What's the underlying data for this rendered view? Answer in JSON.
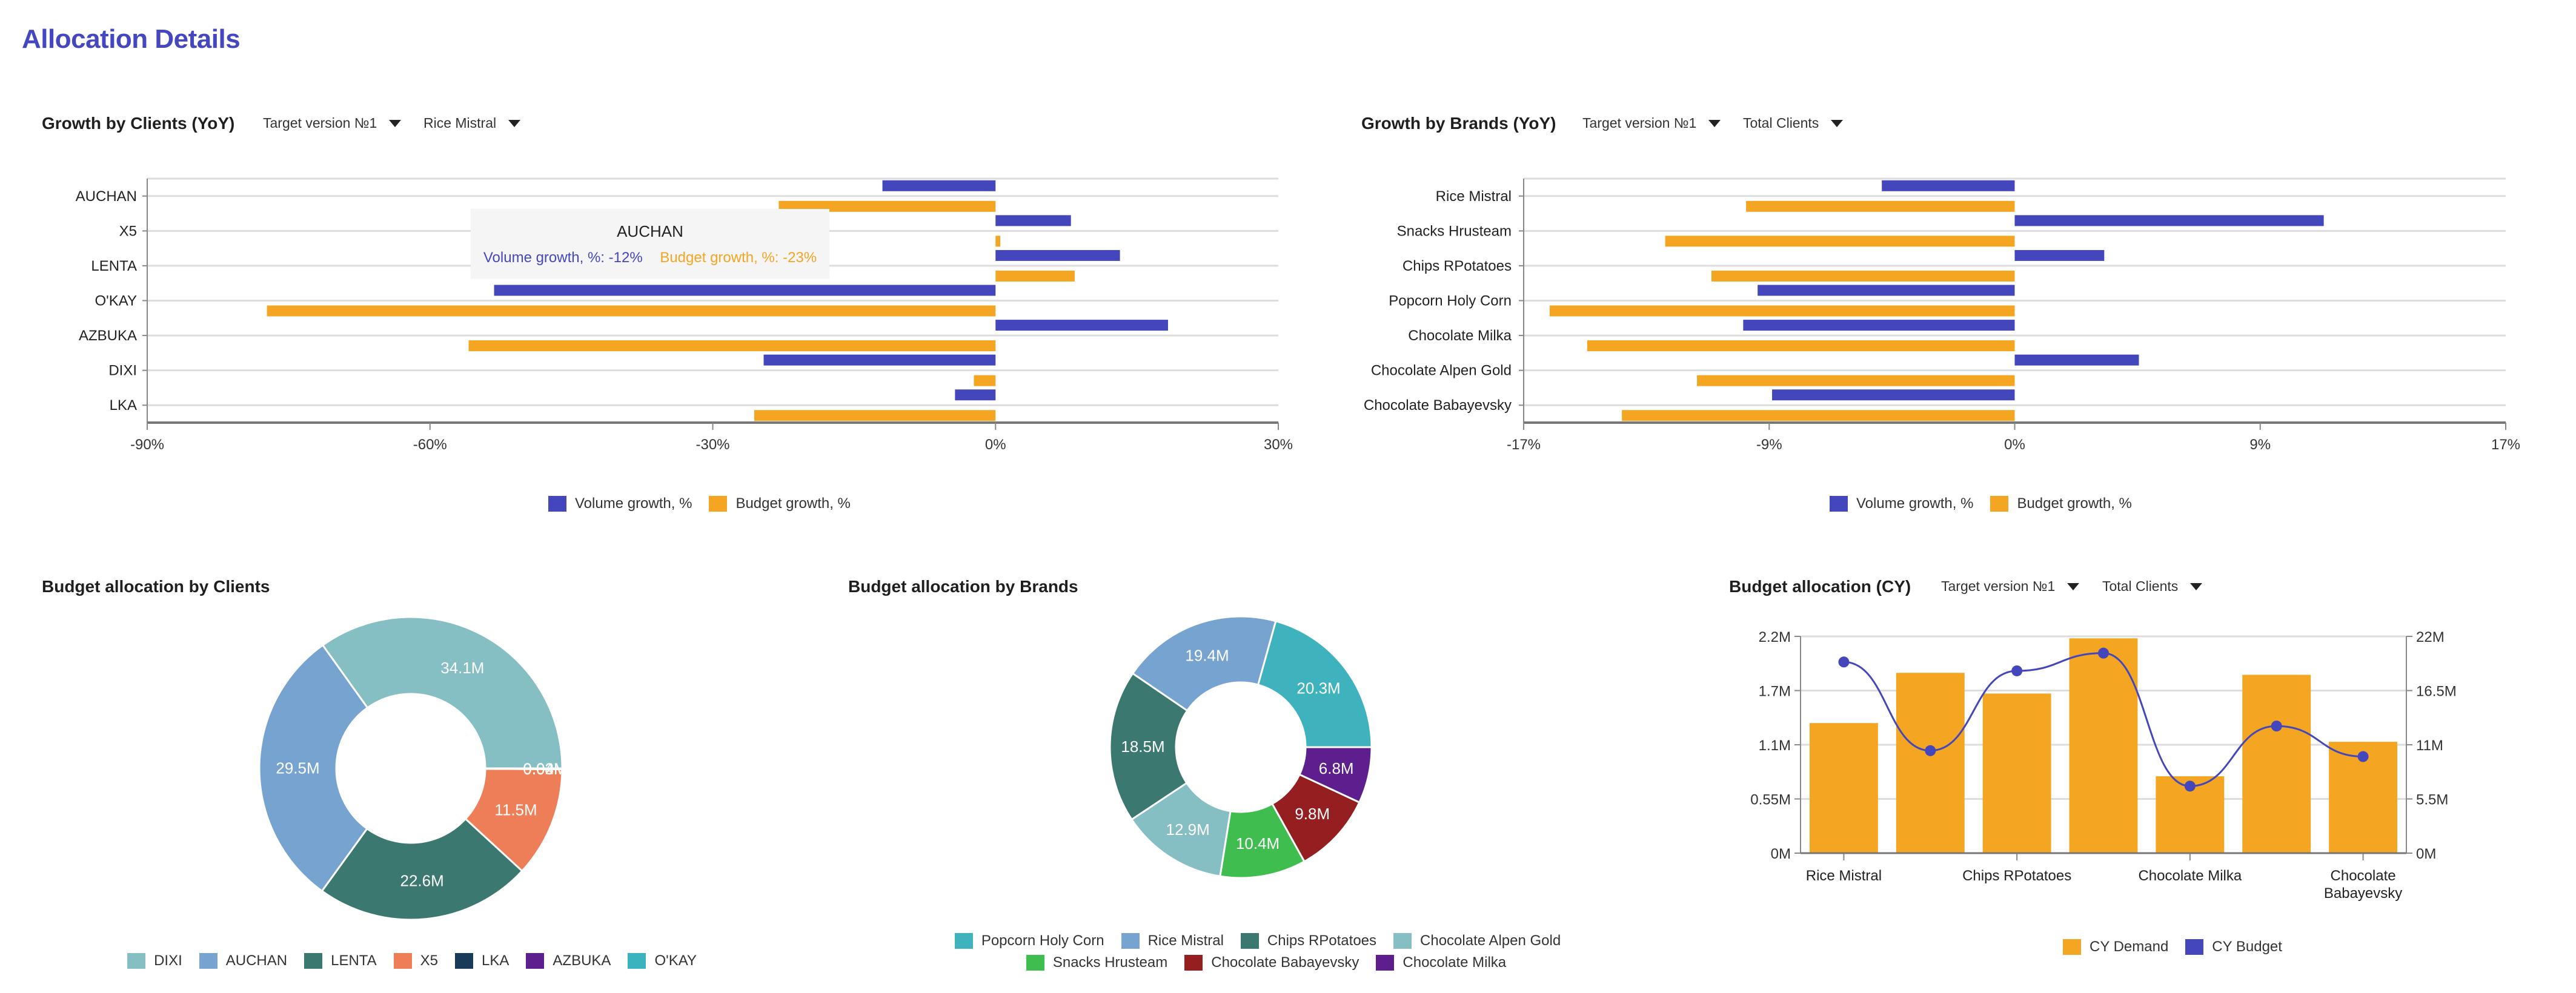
{
  "page": {
    "title": "Allocation Details"
  },
  "colors": {
    "title": "#4447C0",
    "volume": "#4447BB",
    "budget": "#F4A522",
    "grid": "#dddddd",
    "axis": "#888888"
  },
  "growth_clients": {
    "title": "Growth by Clients (YoY)",
    "filters": [
      {
        "label": "Target version №1",
        "icon": "caret-down-icon"
      },
      {
        "label": "Rice Mistral",
        "icon": "caret-down-icon"
      }
    ],
    "tooltip": {
      "title": "AUCHAN",
      "volume": "Volume growth, %: -12%",
      "budget": "Budget growth, %: -23%"
    }
  },
  "growth_brands": {
    "title": "Growth by Brands (YoY)",
    "filters": [
      {
        "label": "Target version №1",
        "icon": "caret-down-icon"
      },
      {
        "label": "Total Clients",
        "icon": "caret-down-icon"
      }
    ]
  },
  "alloc_clients": {
    "title": "Budget allocation by Clients"
  },
  "alloc_brands": {
    "title": "Budget allocation by Brands"
  },
  "alloc_cy": {
    "title": "Budget allocation (CY)",
    "filters": [
      {
        "label": "Target version №1",
        "icon": "caret-down-icon"
      },
      {
        "label": "Total Clients",
        "icon": "caret-down-icon"
      }
    ]
  },
  "chart_data": [
    {
      "id": "growth_clients",
      "type": "bar",
      "orientation": "horizontal",
      "title": "Growth by Clients (YoY)",
      "categories": [
        "AUCHAN",
        "X5",
        "LENTA",
        "O'KAY",
        "AZBUKA",
        "DIXI",
        "LKA"
      ],
      "series": [
        {
          "name": "Volume growth, %",
          "color": "#4447BB",
          "values": [
            -12,
            8,
            13.2,
            -53.2,
            18.3,
            -24.6,
            -4.3
          ]
        },
        {
          "name": "Budget growth, %",
          "color": "#F4A522",
          "values": [
            -23,
            0.5,
            8.4,
            -77.3,
            -55.9,
            -2.3,
            -25.6
          ]
        }
      ],
      "xlim": [
        -90,
        30
      ],
      "xticks": [
        -90,
        -60,
        -30,
        0,
        30
      ],
      "xtick_labels": [
        "-90%",
        "-60%",
        "-30%",
        "0%",
        "30%"
      ],
      "grid": true,
      "legend": "bottom"
    },
    {
      "id": "growth_brands",
      "type": "bar",
      "orientation": "horizontal",
      "title": "Growth by Brands (YoY)",
      "categories": [
        "Rice Mistral",
        "Snacks Hrusteam",
        "Chips RPotatoes",
        "Popcorn Holy Corn",
        "Chocolate Milka",
        "Chocolate Alpen Gold",
        "Chocolate Babayevsky"
      ],
      "series": [
        {
          "name": "Volume growth, %",
          "color": "#4447BB",
          "values": [
            -4.6,
            10.7,
            3.1,
            -8.9,
            -9.4,
            4.3,
            -8.4
          ]
        },
        {
          "name": "Budget growth, %",
          "color": "#F4A522",
          "values": [
            -9.3,
            -12.1,
            -10.5,
            -16.1,
            -14.8,
            -11.0,
            -13.6
          ]
        }
      ],
      "xlim": [
        -17,
        17
      ],
      "xticks": [
        -17,
        -8.5,
        0,
        8.5,
        17
      ],
      "xtick_labels": [
        "-17%",
        "-9%",
        "0%",
        "9%",
        "17%"
      ],
      "grid": true,
      "legend": "bottom"
    },
    {
      "id": "alloc_clients",
      "type": "pie",
      "donut": true,
      "title": "Budget allocation by Clients",
      "slices": [
        {
          "label": "DIXI",
          "value": 34.1,
          "display": "34.1M",
          "color": "#85BEC3"
        },
        {
          "label": "AUCHAN",
          "value": 29.5,
          "display": "29.5M",
          "color": "#77A3D1"
        },
        {
          "label": "LENTA",
          "value": 22.6,
          "display": "22.6M",
          "color": "#3A7870"
        },
        {
          "label": "X5",
          "value": 11.5,
          "display": "11.5M",
          "color": "#EE7E57"
        },
        {
          "label": "LKA",
          "value": 0.03,
          "display": "0.03M",
          "color": "#1A3A5A"
        },
        {
          "label": "AZBUKA",
          "value": 0.02,
          "display": "0.02M",
          "color": "#5E1F8E"
        },
        {
          "label": "O'KAY",
          "value": 0.04,
          "display": "0.04M",
          "color": "#3BB3BF"
        }
      ],
      "legend": "bottom"
    },
    {
      "id": "alloc_brands",
      "type": "pie",
      "donut": true,
      "title": "Budget allocation by Brands",
      "slices": [
        {
          "label": "Popcorn Holy Corn",
          "value": 20.3,
          "display": "20.3M",
          "color": "#3EB3BE"
        },
        {
          "label": "Rice Mistral",
          "value": 19.4,
          "display": "19.4M",
          "color": "#77A3D1"
        },
        {
          "label": "Chips RPotatoes",
          "value": 18.5,
          "display": "18.5M",
          "color": "#3A7870"
        },
        {
          "label": "Chocolate Alpen Gold",
          "value": 12.9,
          "display": "12.9M",
          "color": "#85BEC3"
        },
        {
          "label": "Snacks Hrusteam",
          "value": 10.4,
          "display": "10.4M",
          "color": "#3FBE4F"
        },
        {
          "label": "Chocolate Babayevsky",
          "value": 9.8,
          "display": "9.8M",
          "color": "#951F20"
        },
        {
          "label": "Chocolate Milka",
          "value": 6.8,
          "display": "6.8M",
          "color": "#5E1F8E"
        }
      ],
      "legend": "bottom"
    },
    {
      "id": "alloc_cy",
      "type": "bar",
      "title": "Budget allocation (CY)",
      "categories": [
        "Rice Mistral",
        "Snacks Hrusteam",
        "Chips RPotatoes",
        "Popcorn Holy Corn",
        "Chocolate Milka",
        "Chocolate Alpen Gold",
        "Chocolate Babayevsky"
      ],
      "shown_category_labels": [
        "Rice Mistral",
        "",
        "Chips RPotatoes",
        "",
        "Chocolate Milka",
        "",
        "Chocolate Babayevsky"
      ],
      "series": [
        {
          "name": "CY Demand",
          "type": "bar",
          "axis": "left",
          "color": "#F4A522",
          "values": [
            1.32,
            1.83,
            1.62,
            2.18,
            0.78,
            1.81,
            1.13
          ]
        },
        {
          "name": "CY Budget",
          "type": "line",
          "axis": "right",
          "color": "#4447BB",
          "values": [
            19.4,
            10.4,
            18.5,
            20.3,
            6.8,
            12.9,
            9.8
          ]
        }
      ],
      "ylim_left": [
        0,
        2.2
      ],
      "yticks_left": [
        "0M",
        "0.55M",
        "1.1M",
        "1.7M",
        "2.2M"
      ],
      "ylim_right": [
        0,
        22
      ],
      "yticks_right": [
        "0M",
        "5.5M",
        "11M",
        "16.5M",
        "22M"
      ],
      "grid": true,
      "legend": "bottom"
    }
  ]
}
